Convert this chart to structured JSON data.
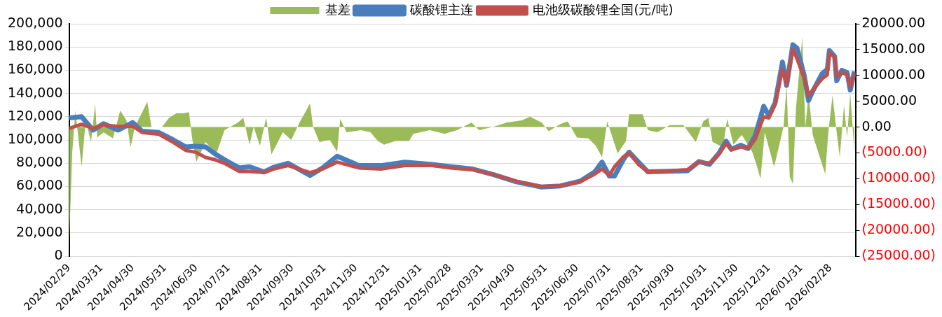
{
  "chart_data": {
    "type": "line",
    "legend": "top",
    "grid": "y",
    "marker": "none",
    "line_style": "solid",
    "xlim": [
      "2024-02-29",
      "2026-03-24"
    ],
    "xticks": [
      {
        "value": "2024-02-29",
        "label": "2024/02/29"
      },
      {
        "value": "2024-03-31",
        "label": "2024/03/31"
      },
      {
        "value": "2024-04-30",
        "label": "2024/04/30"
      },
      {
        "value": "2024-05-31",
        "label": "2024/05/31"
      },
      {
        "value": "2024-06-30",
        "label": "2024/06/30"
      },
      {
        "value": "2024-07-31",
        "label": "2024/07/31"
      },
      {
        "value": "2024-08-31",
        "label": "2024/08/31"
      },
      {
        "value": "2024-09-30",
        "label": "2024/09/30"
      },
      {
        "value": "2024-10-31",
        "label": "2024/10/31"
      },
      {
        "value": "2024-11-30",
        "label": "2024/11/30"
      },
      {
        "value": "2024-12-31",
        "label": "2024/12/31"
      },
      {
        "value": "2025-01-31",
        "label": "2025/01/31"
      },
      {
        "value": "2025-02-28",
        "label": "2025/02/28"
      },
      {
        "value": "2025-03-31",
        "label": "2025/03/31"
      },
      {
        "value": "2025-04-30",
        "label": "2025/04/30"
      },
      {
        "value": "2025-05-31",
        "label": "2025/05/31"
      },
      {
        "value": "2025-06-30",
        "label": "2025/06/30"
      },
      {
        "value": "2025-07-31",
        "label": "2025/07/31"
      },
      {
        "value": "2025-08-31",
        "label": "2025/08/31"
      },
      {
        "value": "2025-09-30",
        "label": "2025/09/30"
      },
      {
        "value": "2025-10-31",
        "label": "2025/10/31"
      },
      {
        "value": "2025-11-30",
        "label": "2025/11/30"
      },
      {
        "value": "2025-12-31",
        "label": "2025/12/31"
      },
      {
        "value": "2026-01-31",
        "label": "2026/01/31"
      },
      {
        "value": "2026-02-28",
        "label": "2026/02/28"
      }
    ],
    "ylim": [
      0,
      200000
    ],
    "yticks": [
      0,
      {
        "value": 20000,
        "label": "20,000"
      },
      {
        "value": 40000,
        "label": "40,000"
      },
      {
        "value": 60000,
        "label": "60,000"
      },
      {
        "value": 80000,
        "label": "80,000"
      },
      {
        "value": 100000,
        "label": "100,000"
      },
      {
        "value": 120000,
        "label": "120,000"
      },
      {
        "value": 140000,
        "label": "140,000"
      },
      {
        "value": 160000,
        "label": "160,000"
      },
      {
        "value": 180000,
        "label": "180,000"
      },
      {
        "value": 200000,
        "label": "200,000"
      }
    ],
    "y2lim": [
      -25000,
      20000
    ],
    "y2ticks": [
      {
        "value": -25000,
        "label": "(25000.00)"
      },
      {
        "value": -20000,
        "label": "(20000.00)"
      },
      {
        "value": -15000,
        "label": "(15000.00)"
      },
      {
        "value": -10000,
        "label": "(10000.00)"
      },
      {
        "value": -5000,
        "label": "(5000.00)"
      },
      {
        "value": 0,
        "label": "0.00"
      },
      {
        "value": 5000,
        "label": "5000.00"
      },
      {
        "value": 10000,
        "label": "10000.00"
      },
      {
        "value": 15000,
        "label": "15000.00"
      },
      {
        "value": 20000,
        "label": "20000.00"
      }
    ],
    "x": [
      "2024-02-29",
      "2024-03-12",
      "2024-03-23",
      "2024-04-02",
      "2024-04-16",
      "2024-04-30",
      "2024-05-09",
      "2024-05-25",
      "2024-06-06",
      "2024-06-20",
      "2024-06-29",
      "2024-07-09",
      "2024-07-18",
      "2024-07-27",
      "2024-08-10",
      "2024-08-20",
      "2024-09-03",
      "2024-09-12",
      "2024-09-26",
      "2024-10-17",
      "2024-10-29",
      "2024-11-12",
      "2024-12-03",
      "2024-12-24",
      "2025-01-16",
      "2025-02-11",
      "2025-03-01",
      "2025-03-22",
      "2025-04-10",
      "2025-05-03",
      "2025-05-27",
      "2025-06-14",
      "2025-07-03",
      "2025-07-17",
      "2025-07-24",
      "2025-07-31",
      "2025-08-05",
      "2025-08-14",
      "2025-08-19",
      "2025-08-28",
      "2025-09-06",
      "2025-09-20",
      "2025-10-14",
      "2025-10-25",
      "2025-11-04",
      "2025-11-13",
      "2025-11-20",
      "2025-11-25",
      "2025-12-04",
      "2025-12-11",
      "2025-12-18",
      "2025-12-26",
      "2025-12-31",
      "2026-01-06",
      "2026-01-13",
      "2026-01-17",
      "2026-01-23",
      "2026-01-27",
      "2026-02-03",
      "2026-02-07",
      "2026-02-11",
      "2026-02-20",
      "2026-02-25",
      "2026-02-27",
      "2026-03-04",
      "2026-03-06",
      "2026-03-11",
      "2026-03-16",
      "2026-03-19",
      "2026-03-23"
    ],
    "series": [
      {
        "name": "基差",
        "type": "area",
        "axis": "y2",
        "color": "#9bbb59",
        "x": [
          "2024-02-29",
          "2024-03-03",
          "2024-03-06",
          "2024-03-12",
          "2024-03-16",
          "2024-03-21",
          "2024-03-25",
          "2024-03-27",
          "2024-04-02",
          "2024-04-11",
          "2024-04-18",
          "2024-04-24",
          "2024-04-28",
          "2024-05-02",
          "2024-05-14",
          "2024-05-18",
          "2024-05-28",
          "2024-06-04",
          "2024-06-11",
          "2024-06-18",
          "2024-06-23",
          "2024-06-26",
          "2024-06-30",
          "2024-07-09",
          "2024-07-19",
          "2024-07-27",
          "2024-08-09",
          "2024-08-14",
          "2024-08-20",
          "2024-08-24",
          "2024-08-30",
          "2024-09-05",
          "2024-09-10",
          "2024-09-21",
          "2024-09-29",
          "2024-10-08",
          "2024-10-12",
          "2024-10-17",
          "2024-10-20",
          "2024-10-26",
          "2024-11-05",
          "2024-11-12",
          "2024-11-15",
          "2024-11-21",
          "2024-12-05",
          "2024-12-14",
          "2024-12-21",
          "2024-12-27",
          "2025-01-07",
          "2025-01-20",
          "2025-01-24",
          "2025-02-09",
          "2025-02-23",
          "2025-03-07",
          "2025-03-21",
          "2025-03-28",
          "2025-04-10",
          "2025-04-24",
          "2025-05-08",
          "2025-05-16",
          "2025-05-27",
          "2025-06-03",
          "2025-06-14",
          "2025-06-21",
          "2025-06-30",
          "2025-07-11",
          "2025-07-18",
          "2025-07-24",
          "2025-07-29",
          "2025-08-08",
          "2025-08-16",
          "2025-08-19",
          "2025-09-01",
          "2025-09-06",
          "2025-09-15",
          "2025-09-27",
          "2025-10-10",
          "2025-10-15",
          "2025-10-22",
          "2025-10-29",
          "2025-11-03",
          "2025-11-07",
          "2025-11-17",
          "2025-11-21",
          "2025-11-27",
          "2025-12-05",
          "2025-12-15",
          "2025-12-19",
          "2025-12-23",
          "2025-12-27",
          "2026-01-05",
          "2026-01-14",
          "2026-01-17",
          "2026-01-20",
          "2026-01-23",
          "2026-01-26",
          "2026-02-01",
          "2026-02-04",
          "2026-02-07",
          "2026-02-11",
          "2026-02-23",
          "2026-02-26",
          "2026-03-02",
          "2026-03-06",
          "2026-03-09",
          "2026-03-13",
          "2026-03-16",
          "2026-03-19",
          "2026-03-23"
        ],
        "values": [
          -23000,
          -5000,
          3200,
          -7700,
          1300,
          -2900,
          4400,
          -2000,
          -1000,
          -2200,
          3200,
          1300,
          -3900,
          0,
          4900,
          0,
          0,
          1800,
          2700,
          2700,
          2900,
          -2200,
          -6700,
          -2900,
          -5300,
          -600,
          900,
          1800,
          -3400,
          0,
          -3600,
          1800,
          -5300,
          -1000,
          -2500,
          1300,
          2700,
          4600,
          0,
          -2900,
          -2500,
          -4800,
          1600,
          -1000,
          -600,
          -1000,
          -2700,
          -3400,
          -2700,
          -2700,
          -1300,
          -600,
          -1300,
          -600,
          900,
          -600,
          0,
          900,
          1300,
          2000,
          900,
          -800,
          600,
          1100,
          -2000,
          -2200,
          -3600,
          -5800,
          1100,
          -5100,
          -2700,
          2500,
          2500,
          -600,
          -1000,
          400,
          400,
          -1000,
          -2900,
          1100,
          1800,
          -2900,
          -3900,
          1600,
          -3400,
          -1500,
          -4800,
          -7200,
          -10000,
          -1000,
          -7700,
          0,
          8000,
          -9600,
          -11000,
          3700,
          17400,
          0,
          6500,
          -1500,
          -9100,
          -1000,
          6100,
          -1000,
          -5800,
          4200,
          -2000,
          6500,
          -4800
        ]
      },
      {
        "name": "碳酸锂主连",
        "type": "line",
        "axis": "y",
        "color": "#4a7ebb",
        "values": [
          119000,
          120000,
          108500,
          114000,
          108500,
          115000,
          107500,
          106500,
          101000,
          94000,
          94600,
          94000,
          88000,
          83000,
          76000,
          77000,
          72500,
          76500,
          80000,
          69500,
          76000,
          86000,
          78000,
          78000,
          81000,
          79000,
          77000,
          75000,
          70500,
          64000,
          59500,
          60500,
          64500,
          72500,
          81000,
          69000,
          69000,
          84000,
          89600,
          81000,
          72600,
          73000,
          73500,
          81500,
          79000,
          88500,
          99000,
          92000,
          95500,
          92700,
          104000,
          129000,
          121000,
          132000,
          167000,
          147000,
          182000,
          179000,
          155000,
          134000,
          142000,
          157000,
          161000,
          177000,
          172000,
          151000,
          160000,
          158000,
          143000,
          159000
        ]
      },
      {
        "name": "电池级碳酸锂全国(元/吨)",
        "type": "line",
        "axis": "y",
        "color": "#c0504d",
        "values": [
          110000,
          113500,
          110000,
          113000,
          111700,
          112000,
          106500,
          105000,
          99000,
          91000,
          89600,
          85000,
          83000,
          80000,
          73000,
          73000,
          72000,
          75000,
          78000,
          72000,
          75000,
          81000,
          76000,
          75000,
          78000,
          78000,
          76000,
          74500,
          70500,
          64400,
          60000,
          60600,
          64000,
          70700,
          75000,
          69500,
          77000,
          86000,
          88500,
          79000,
          72600,
          73000,
          74500,
          81000,
          80000,
          87600,
          97000,
          91500,
          94000,
          92700,
          101000,
          120000,
          119000,
          130600,
          161000,
          148000,
          178000,
          170000,
          152700,
          138000,
          143000,
          152700,
          156000,
          175000,
          171600,
          154600,
          158000,
          156000,
          146000,
          157000
        ]
      }
    ]
  }
}
